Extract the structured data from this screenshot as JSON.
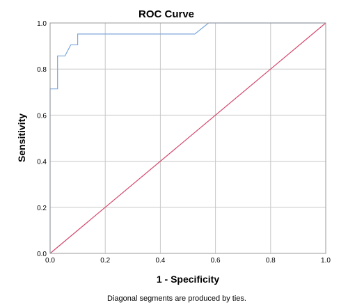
{
  "chart_data": {
    "type": "line",
    "title": "ROC Curve",
    "xlabel": "1 - Specificity",
    "ylabel": "Sensitivity",
    "footnote": "Diagonal segments are produced by ties.",
    "xlim": [
      0,
      1
    ],
    "ylim": [
      0,
      1
    ],
    "x_ticks": [
      "0.0",
      "0.2",
      "0.4",
      "0.6",
      "0.8",
      "1.0"
    ],
    "y_ticks": [
      "0.0",
      "0.2",
      "0.4",
      "0.6",
      "0.8",
      "1.0"
    ],
    "grid": true,
    "legend": "none",
    "series": [
      {
        "role": "roc-curve",
        "color": "#7BA7DB",
        "x": [
          0,
          0,
          0.027,
          0.027,
          0.054,
          0.075,
          0.1,
          0.1,
          0.525,
          0.575,
          1.0
        ],
        "y": [
          0,
          0.714,
          0.714,
          0.857,
          0.857,
          0.905,
          0.905,
          0.952,
          0.952,
          1.0,
          1.0
        ]
      },
      {
        "role": "reference-line",
        "color": "#D6466B",
        "x": [
          0,
          1
        ],
        "y": [
          0,
          1
        ]
      }
    ]
  },
  "colors": {
    "grid": "#C8C8C8",
    "frame": "#999999",
    "background": "#FFFFFF"
  }
}
